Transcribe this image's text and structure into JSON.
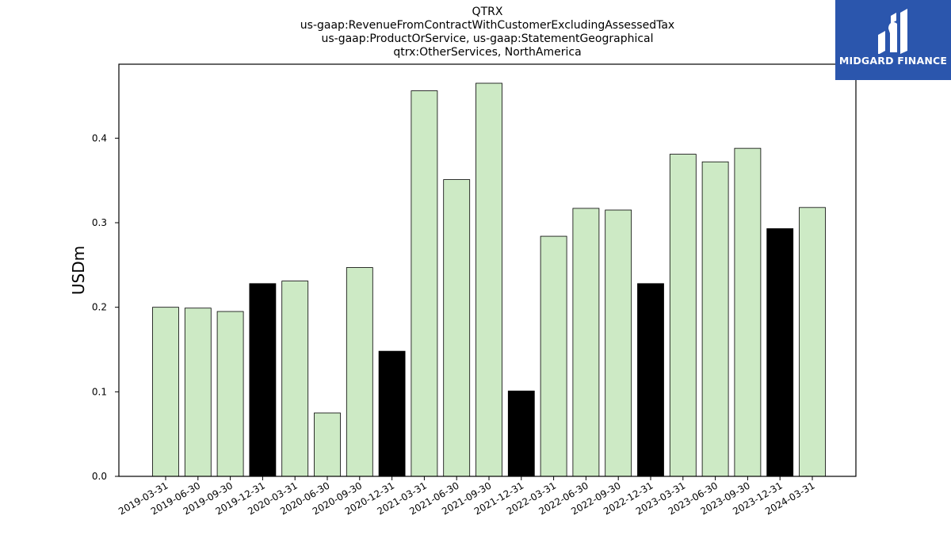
{
  "logo": {
    "text": "MIDGARD FINANCE",
    "icon": "midgard-logo-icon"
  },
  "chart_data": {
    "type": "bar",
    "title_lines": [
      "QTRX",
      "us-gaap:RevenueFromContractWithCustomerExcludingAssessedTax",
      "us-gaap:ProductOrService, us-gaap:StatementGeographical",
      "qtrx:OtherServices, NorthAmerica"
    ],
    "xlabel": "",
    "ylabel": "USDm",
    "ylim": [
      0,
      0.4875
    ],
    "yticks": [
      "0.0",
      "0.1",
      "0.2",
      "0.3",
      "0.4"
    ],
    "grid": false,
    "legend": "none",
    "colors": {
      "quarter": "#cdeac5",
      "year_end": "#000000",
      "edge": "#000000"
    },
    "categories": [
      "2019-03-31",
      "2019-06-30",
      "2019-09-30",
      "2019-12-31",
      "2020-03-31",
      "2020-06-30",
      "2020-09-30",
      "2020-12-31",
      "2021-03-31",
      "2021-06-30",
      "2021-09-30",
      "2021-12-31",
      "2022-03-31",
      "2022-06-30",
      "2022-09-30",
      "2022-12-31",
      "2023-03-31",
      "2023-06-30",
      "2023-09-30",
      "2023-12-31",
      "2024-03-31"
    ],
    "values": [
      0.2,
      0.199,
      0.195,
      0.228,
      0.231,
      0.075,
      0.247,
      0.148,
      0.456,
      0.351,
      0.465,
      0.101,
      0.284,
      0.317,
      0.315,
      0.228,
      0.381,
      0.372,
      0.388,
      0.293,
      0.318
    ],
    "highlight": [
      false,
      false,
      false,
      true,
      false,
      false,
      false,
      true,
      false,
      false,
      false,
      true,
      false,
      false,
      false,
      true,
      false,
      false,
      false,
      true,
      false
    ]
  }
}
